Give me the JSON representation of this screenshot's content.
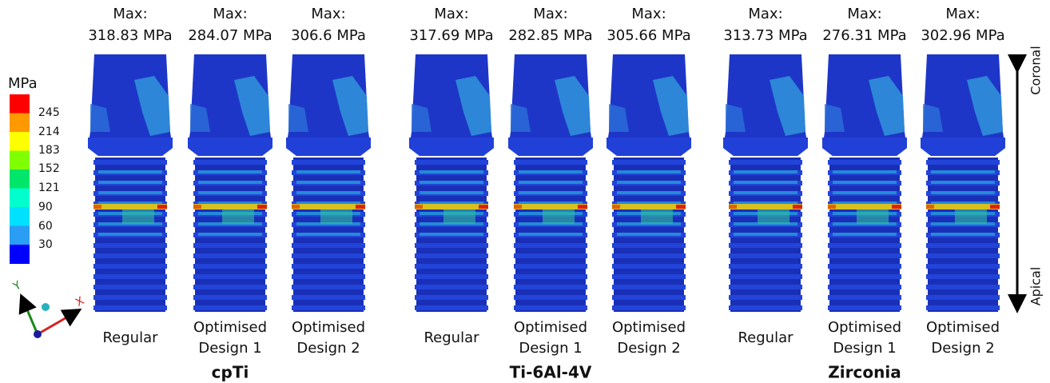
{
  "legend": {
    "unit": "MPa",
    "ticks": [
      "245",
      "214",
      "183",
      "152",
      "121",
      "90",
      "60",
      "30"
    ]
  },
  "direction": {
    "top": "Coronal",
    "bottom": "Apical"
  },
  "groups": [
    {
      "name": "cpTi",
      "implants": [
        {
          "max_label": "Max:",
          "max_value": "318.83 MPa",
          "design": [
            "Regular"
          ]
        },
        {
          "max_label": "Max:",
          "max_value": "284.07 MPa",
          "design": [
            "Optimised",
            "Design 1"
          ]
        },
        {
          "max_label": "Max:",
          "max_value": "306.6 MPa",
          "design": [
            "Optimised",
            "Design 2"
          ]
        }
      ]
    },
    {
      "name": "Ti-6Al-4V",
      "implants": [
        {
          "max_label": "Max:",
          "max_value": "317.69 MPa",
          "design": [
            "Regular"
          ]
        },
        {
          "max_label": "Max:",
          "max_value": "282.85 MPa",
          "design": [
            "Optimised",
            "Design 1"
          ]
        },
        {
          "max_label": "Max:",
          "max_value": "305.66 MPa",
          "design": [
            "Optimised",
            "Design 2"
          ]
        }
      ]
    },
    {
      "name": "Zirconia",
      "implants": [
        {
          "max_label": "Max:",
          "max_value": "313.73 MPa",
          "design": [
            "Regular"
          ]
        },
        {
          "max_label": "Max:",
          "max_value": "276.31 MPa",
          "design": [
            "Optimised",
            "Design 1"
          ]
        },
        {
          "max_label": "Max:",
          "max_value": "302.96 MPa",
          "design": [
            "Optimised",
            "Design 2"
          ]
        }
      ]
    }
  ]
}
